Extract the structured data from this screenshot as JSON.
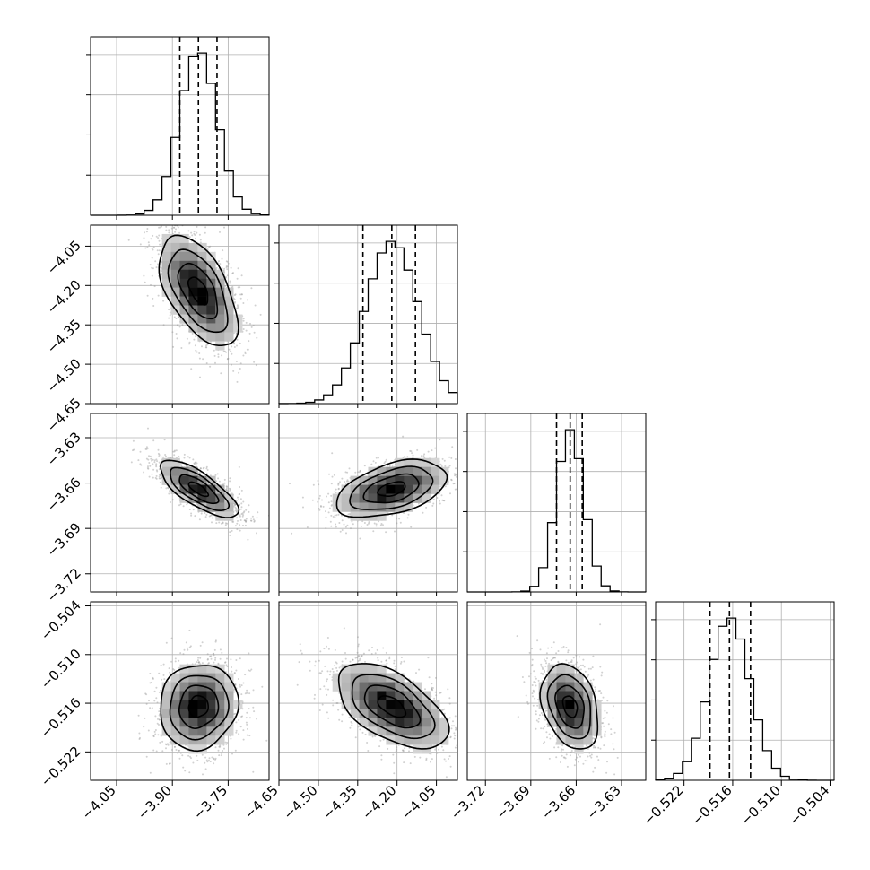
{
  "figure": {
    "type": "corner-plot",
    "colors": {
      "line": "#000000",
      "grid": "#b0b0b0",
      "scatter": "#9a9a9a",
      "density_light": "#e8e8e8",
      "density_dark": "#000000"
    }
  },
  "chart_data": {
    "type": "corner",
    "params": [
      {
        "mean": -3.83,
        "sigma": 0.05,
        "q16": -3.88,
        "q50": -3.83,
        "q84": -3.78,
        "range": [
          -4.12,
          -3.64
        ],
        "ticks": [
          -4.05,
          -3.9,
          -3.75
        ],
        "tick_labels": [
          "−4.05",
          "−3.90",
          "−3.75"
        ]
      },
      {
        "mean": -4.22,
        "sigma": 0.1,
        "q16": -4.33,
        "q50": -4.22,
        "q84": -4.13,
        "range": [
          -4.65,
          -3.97
        ],
        "ticks": [
          -4.65,
          -4.5,
          -4.35,
          -4.2,
          -4.05
        ],
        "tick_labels": [
          "−4.65",
          "−4.50",
          "−4.35",
          "−4.20",
          "−4.05"
        ]
      },
      {
        "mean": -3.664,
        "sigma": 0.009,
        "q16": -3.673,
        "q50": -3.664,
        "q84": -3.656,
        "range": [
          -3.732,
          -3.614
        ],
        "ticks": [
          -3.72,
          -3.69,
          -3.66,
          -3.63
        ],
        "tick_labels": [
          "−3.72",
          "−3.69",
          "−3.66",
          "−3.63"
        ]
      },
      {
        "mean": -0.5164,
        "sigma": 0.0025,
        "q16": -0.5188,
        "q50": -0.5164,
        "q84": -0.5138,
        "range": [
          -0.5255,
          -0.5035
        ],
        "ticks": [
          -0.522,
          -0.516,
          -0.51,
          -0.504
        ],
        "tick_labels": [
          "−0.522",
          "−0.516",
          "−0.510",
          "−0.504"
        ]
      }
    ],
    "correlations": [
      {
        "row": 1,
        "col": 0,
        "rho": -0.55
      },
      {
        "row": 2,
        "col": 0,
        "rho": -0.75
      },
      {
        "row": 2,
        "col": 1,
        "rho": 0.45
      },
      {
        "row": 3,
        "col": 0,
        "rho": 0.08
      },
      {
        "row": 3,
        "col": 1,
        "rho": -0.55
      },
      {
        "row": 3,
        "col": 2,
        "rho": -0.3
      }
    ],
    "contour_levels_sigma": [
      0.5,
      1.0,
      1.5,
      2.0
    ],
    "grid": true
  }
}
